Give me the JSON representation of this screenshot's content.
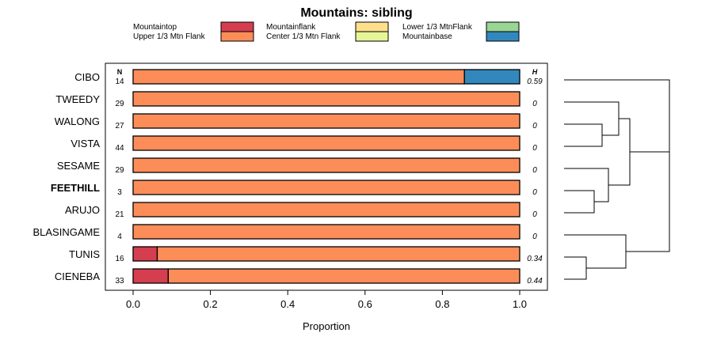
{
  "chart_data": {
    "type": "bar",
    "stacked": true,
    "orientation": "horizontal",
    "title": "Mountains: sibling",
    "xlabel": "Proportion",
    "xlim": [
      0,
      1
    ],
    "xticks": [
      "0.0",
      "0.2",
      "0.4",
      "0.6",
      "0.8",
      "1.0"
    ],
    "xtick_values": [
      0,
      0.2,
      0.4,
      0.6,
      0.8,
      1.0
    ],
    "n_header": "N",
    "h_header": "H",
    "legend": [
      {
        "name": "Mountaintop",
        "color": "#d53e4f"
      },
      {
        "name": "Upper 1/3 Mtn Flank",
        "color": "#fc8d59"
      },
      {
        "name": "Mountainflank",
        "color": "#fee08b"
      },
      {
        "name": "Center 1/3 Mtn Flank",
        "color": "#e6f598"
      },
      {
        "name": "Lower 1/3 MtnFlank",
        "color": "#99d594"
      },
      {
        "name": "Mountainbase",
        "color": "#3288bd"
      }
    ],
    "categories": [
      "CIBO",
      "TWEEDY",
      "WALONG",
      "VISTA",
      "SESAME",
      "FEETHILL",
      "ARUJO",
      "BLASINGAME",
      "TUNIS",
      "CIENEBA"
    ],
    "highlight": "FEETHILL",
    "n": [
      "14",
      "29",
      "27",
      "44",
      "29",
      "3",
      "21",
      "4",
      "16",
      "33"
    ],
    "h": [
      "0.59",
      "0",
      "0",
      "0",
      "0",
      "0",
      "0",
      "0",
      "0.34",
      "0.44"
    ],
    "series": [
      {
        "name": "Mountaintop",
        "values": [
          0,
          0,
          0,
          0,
          0,
          0,
          0,
          0,
          0.0625,
          0.091
        ]
      },
      {
        "name": "Upper 1/3 Mtn Flank",
        "values": [
          0.857,
          1,
          1,
          1,
          1,
          1,
          1,
          1,
          0.9375,
          0.909
        ]
      },
      {
        "name": "Mountainflank",
        "values": [
          0,
          0,
          0,
          0,
          0,
          0,
          0,
          0,
          0,
          0
        ]
      },
      {
        "name": "Center 1/3 Mtn Flank",
        "values": [
          0,
          0,
          0,
          0,
          0,
          0,
          0,
          0,
          0,
          0
        ]
      },
      {
        "name": "Lower 1/3 MtnFlank",
        "values": [
          0,
          0,
          0,
          0,
          0,
          0,
          0,
          0,
          0,
          0
        ]
      },
      {
        "name": "Mountainbase",
        "values": [
          0.143,
          0,
          0,
          0,
          0,
          0,
          0,
          0,
          0,
          0
        ]
      }
    ],
    "dendrogram": {
      "type": "hierarchical-clustering",
      "tree": [
        "CIBO",
        [
          [
            [
              "TWEEDY",
              [
                "WALONG",
                "VISTA"
              ]
            ],
            [
              "SESAME",
              [
                "FEETHILL",
                "ARUJO"
              ]
            ]
          ],
          [
            "BLASINGAME",
            [
              "TUNIS",
              "CIENEBA"
            ]
          ]
        ]
      ]
    }
  }
}
